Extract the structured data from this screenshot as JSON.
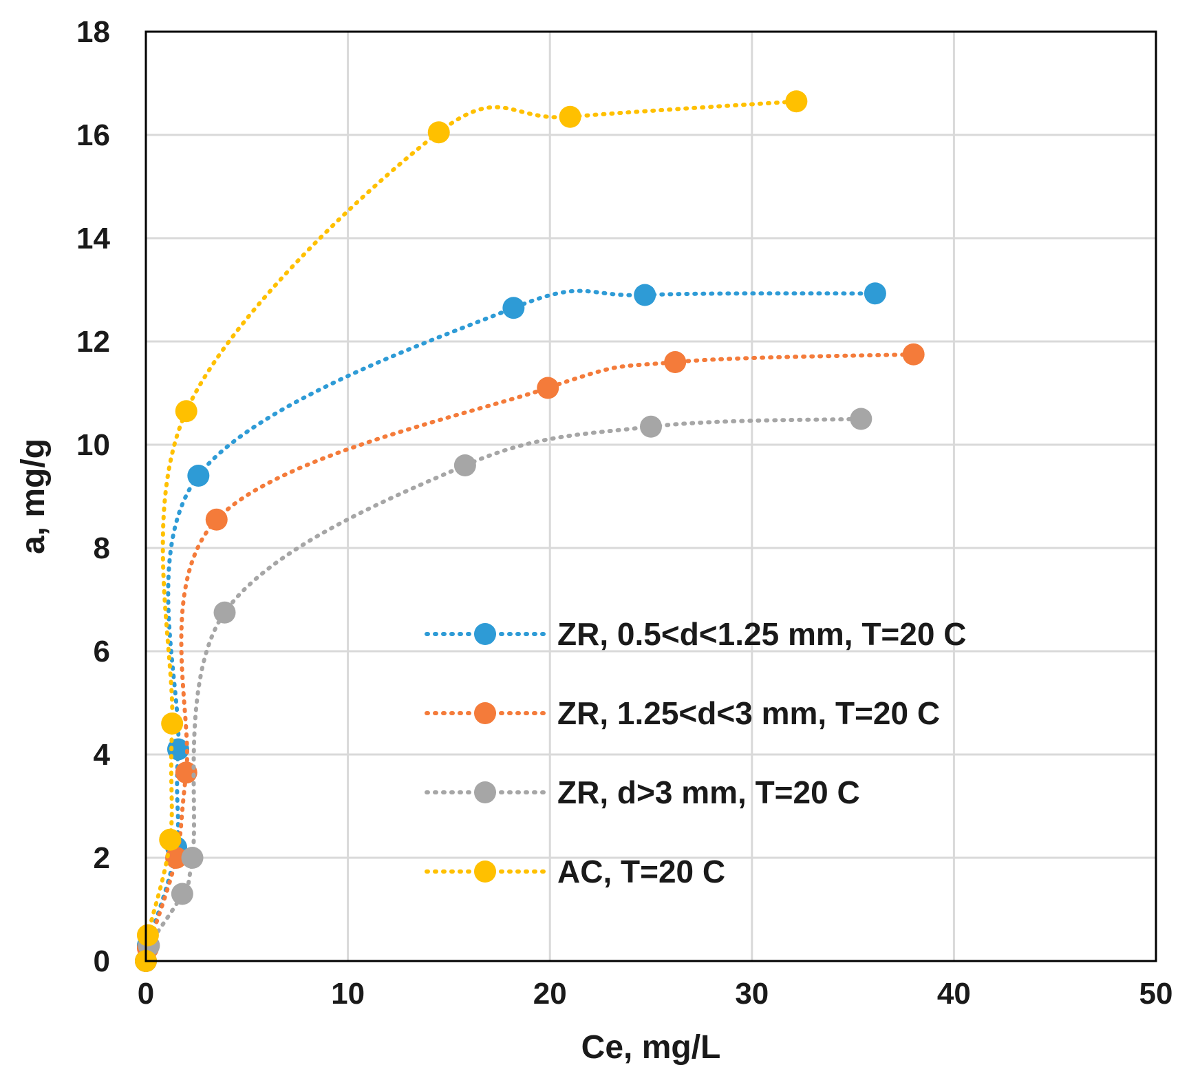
{
  "chart_data": {
    "type": "scatter",
    "title": "",
    "xlabel": "Ce, mg/L",
    "ylabel": "a, mg/g",
    "xlim": [
      0,
      50
    ],
    "ylim": [
      0,
      18
    ],
    "x_ticks": [
      0,
      10,
      20,
      30,
      40,
      50
    ],
    "y_ticks": [
      0,
      2,
      4,
      6,
      8,
      10,
      12,
      14,
      16,
      18
    ],
    "grid": true,
    "legend_position": "center-right",
    "line_style": "dotted smoothed",
    "series": [
      {
        "name": "ZR, 0.5<d<1.25 mm, T=20 C",
        "color": "#2E9BD6",
        "points": [
          [
            0.0,
            0.0
          ],
          [
            0.1,
            0.3
          ],
          [
            1.5,
            2.2
          ],
          [
            1.6,
            4.1
          ],
          [
            2.6,
            9.4
          ],
          [
            18.2,
            12.65
          ],
          [
            24.7,
            12.9
          ],
          [
            36.1,
            12.93
          ]
        ]
      },
      {
        "name": "ZR, 1.25<d<3 mm, T=20 C",
        "color": "#F47B3A",
        "points": [
          [
            0.0,
            0.0
          ],
          [
            0.1,
            0.25
          ],
          [
            1.5,
            2.0
          ],
          [
            2.0,
            3.65
          ],
          [
            3.5,
            8.55
          ],
          [
            19.9,
            11.1
          ],
          [
            26.2,
            11.6
          ],
          [
            38.0,
            11.75
          ]
        ]
      },
      {
        "name": "ZR, d>3 mm, T=20 C",
        "color": "#A6A6A6",
        "points": [
          [
            0.0,
            0.0
          ],
          [
            0.15,
            0.3
          ],
          [
            1.8,
            1.3
          ],
          [
            2.3,
            2.0
          ],
          [
            3.9,
            6.75
          ],
          [
            15.8,
            9.6
          ],
          [
            25.0,
            10.35
          ],
          [
            35.4,
            10.5
          ]
        ]
      },
      {
        "name": "AC, T=20 C",
        "color": "#FFC000",
        "points": [
          [
            0.0,
            0.0
          ],
          [
            0.1,
            0.5
          ],
          [
            1.2,
            2.35
          ],
          [
            1.3,
            4.6
          ],
          [
            2.0,
            10.65
          ],
          [
            14.5,
            16.05
          ],
          [
            21.0,
            16.35
          ],
          [
            32.2,
            16.65
          ]
        ]
      }
    ]
  }
}
